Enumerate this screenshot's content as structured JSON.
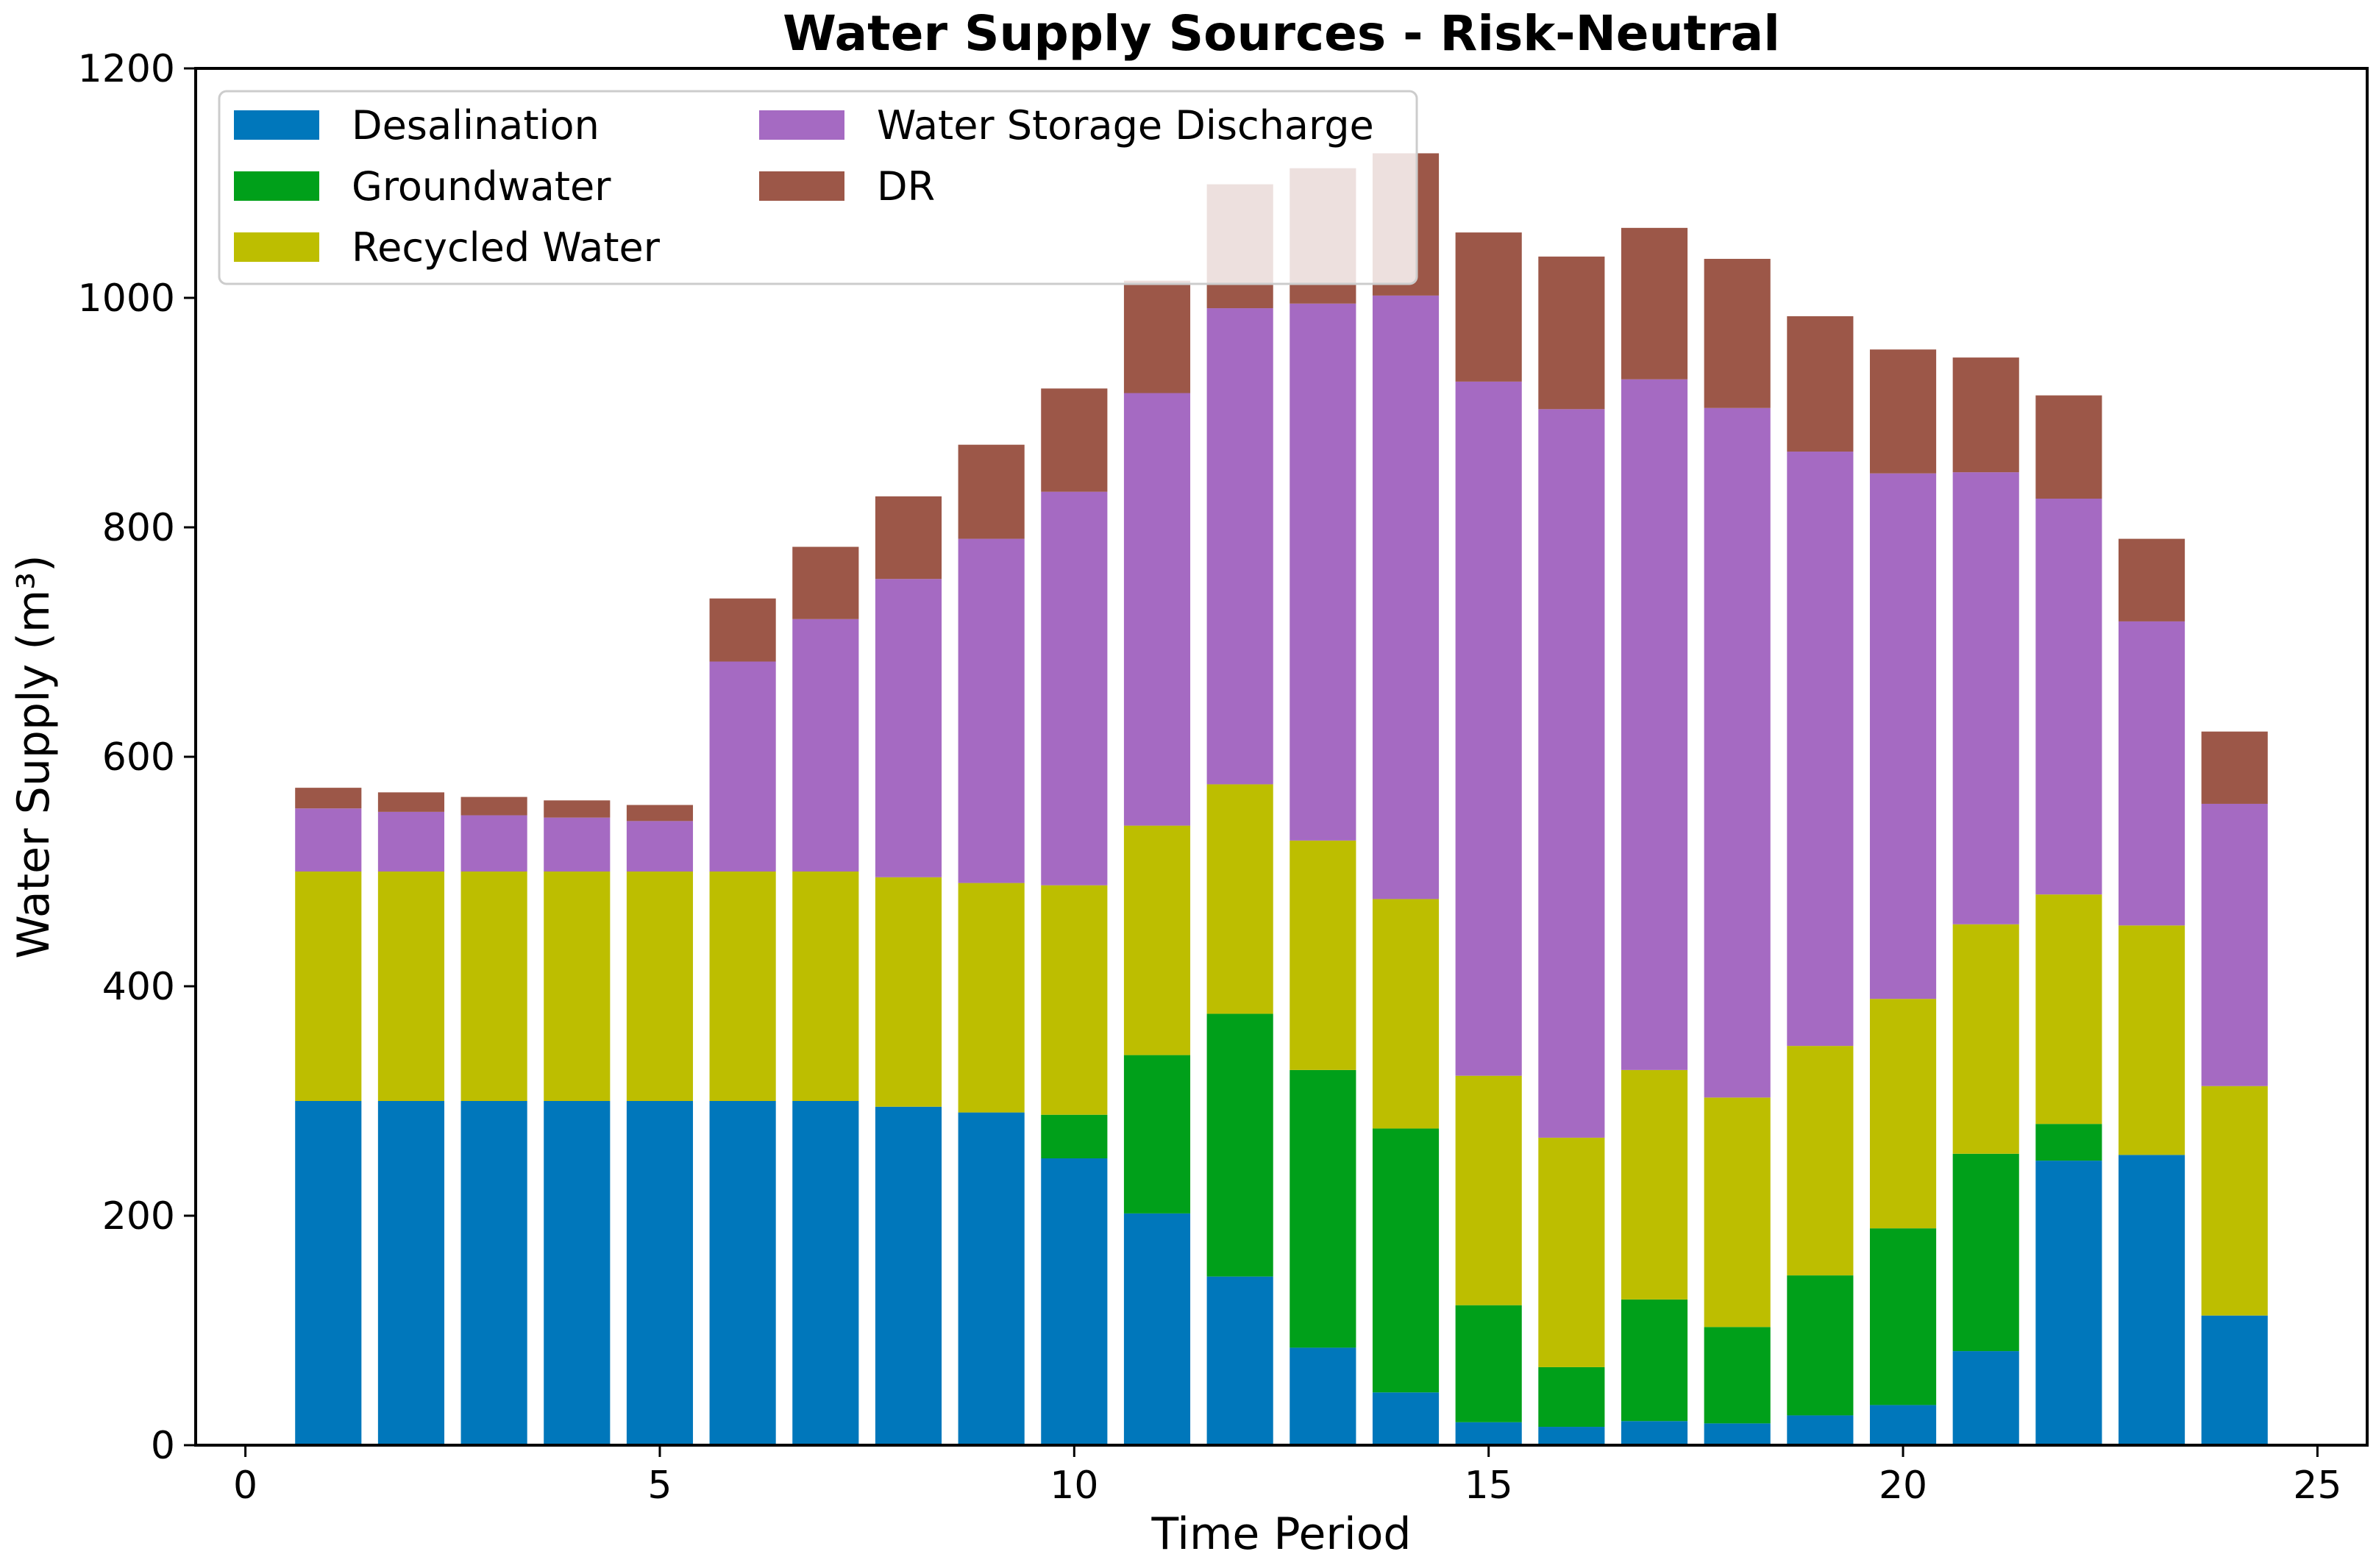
{
  "chart_data": {
    "type": "bar",
    "stacked": true,
    "title": "Water Supply Sources - Risk-Neutral",
    "xlabel": "Time Period",
    "ylabel": "Water Supply (m³)",
    "xlim": [
      -0.6,
      25.6
    ],
    "ylim": [
      0,
      1200
    ],
    "xticks": [
      0,
      5,
      10,
      15,
      20,
      25
    ],
    "yticks": [
      0,
      200,
      400,
      600,
      800,
      1000,
      1200
    ],
    "grid": false,
    "legend_position": "top-left",
    "x": [
      1,
      2,
      3,
      4,
      5,
      6,
      7,
      8,
      9,
      10,
      11,
      12,
      13,
      14,
      15,
      16,
      17,
      18,
      19,
      20,
      21,
      22,
      23,
      24
    ],
    "series": [
      {
        "name": "Desalination",
        "color": "#0077bb",
        "values": [
          300,
          300,
          300,
          300,
          300,
          300,
          300,
          295,
          290,
          250,
          202,
          147,
          85,
          46,
          20,
          16,
          21,
          19,
          26,
          35,
          82,
          248,
          253,
          113
        ]
      },
      {
        "name": "Groundwater",
        "color": "#00a01a",
        "values": [
          0,
          0,
          0,
          0,
          0,
          0,
          0,
          0,
          0,
          38,
          138,
          229,
          242,
          230,
          102,
          52,
          106,
          84,
          122,
          154,
          172,
          32,
          0,
          0
        ]
      },
      {
        "name": "Recycled Water",
        "color": "#bdbe00",
        "values": [
          200,
          200,
          200,
          200,
          200,
          200,
          200,
          200,
          200,
          200,
          200,
          200,
          200,
          200,
          200,
          200,
          200,
          200,
          200,
          200,
          200,
          200,
          200,
          200
        ]
      },
      {
        "name": "Water Storage Discharge",
        "color": "#a56ac2",
        "values": [
          55,
          52,
          49,
          47,
          44,
          183,
          220,
          260,
          300,
          343,
          377,
          415,
          468,
          526,
          605,
          635,
          602,
          601,
          518,
          458,
          394,
          345,
          265,
          246
        ]
      },
      {
        "name": "DR",
        "color": "#9c5748",
        "values": [
          18,
          17,
          16,
          15,
          14,
          55,
          63,
          72,
          82,
          90,
          98,
          108,
          118,
          124,
          130,
          133,
          132,
          130,
          118,
          108,
          100,
          90,
          72,
          63
        ]
      }
    ]
  }
}
